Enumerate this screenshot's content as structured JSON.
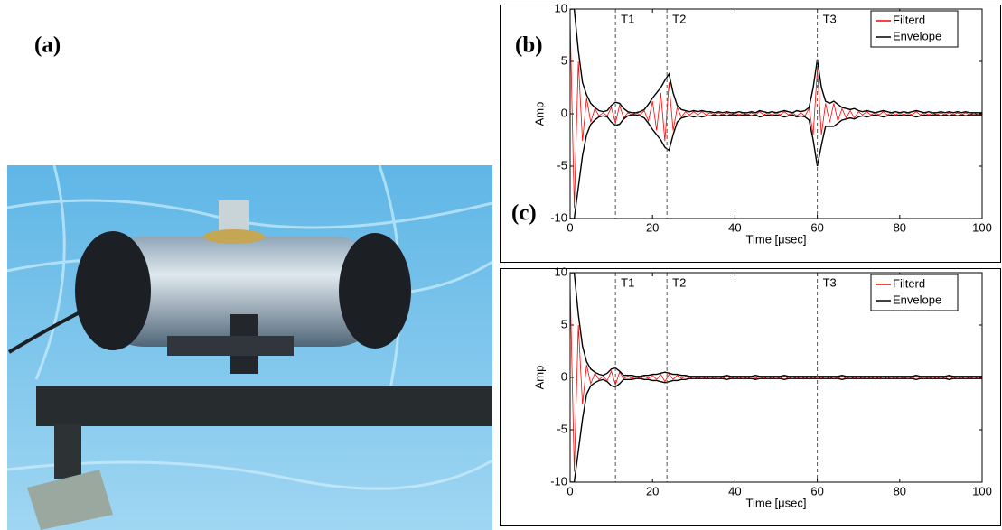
{
  "panel_labels": [
    "(a)",
    "(b)",
    "(c)"
  ],
  "chart_data": [
    {
      "type": "line",
      "xlabel": "Time [μsec]",
      "ylabel": "Amp",
      "xlim": [
        0,
        100
      ],
      "ylim": [
        -10,
        10
      ],
      "xticks": [
        0,
        20,
        40,
        60,
        80,
        100
      ],
      "yticks": [
        -10,
        -5,
        0,
        5,
        10
      ],
      "legend": "top-right",
      "markers": [
        {
          "label": "T1",
          "x": 11
        },
        {
          "label": "T2",
          "x": 23.5
        },
        {
          "label": "T3",
          "x": 60
        }
      ],
      "x": [
        0,
        1,
        2,
        3,
        4,
        5,
        6,
        7,
        8,
        9,
        10,
        11,
        12,
        13,
        14,
        15,
        16,
        17,
        18,
        19,
        20,
        21,
        22,
        23,
        24,
        25,
        26,
        27,
        28,
        29,
        30,
        31,
        32,
        33,
        34,
        35,
        36,
        37,
        38,
        39,
        40,
        41,
        42,
        43,
        44,
        45,
        46,
        47,
        48,
        49,
        50,
        51,
        52,
        53,
        54,
        55,
        56,
        57,
        58,
        59,
        60,
        61,
        62,
        63,
        64,
        65,
        66,
        67,
        68,
        69,
        70,
        71,
        72,
        73,
        74,
        75,
        76,
        77,
        78,
        79,
        80,
        81,
        82,
        83,
        84,
        85,
        86,
        87,
        88,
        89,
        90,
        91,
        92,
        93,
        94,
        95,
        96,
        97,
        98,
        99,
        100
      ],
      "series": [
        {
          "name": "Filterd",
          "color": "#ff0000",
          "values": [
            9,
            -9,
            5,
            -2.6,
            1.5,
            -0.8,
            0.5,
            -0.2,
            0.1,
            -0.2,
            0.6,
            -0.9,
            0.8,
            -0.4,
            0.1,
            -0.1,
            0.1,
            -0.1,
            0.3,
            -0.7,
            1.2,
            -1.6,
            2,
            -2.6,
            3,
            -1.6,
            0.6,
            -0.3,
            0.2,
            -0.1,
            0.2,
            -0.1,
            0.2,
            -0.1,
            0.1,
            -0.1,
            0.1,
            -0.1,
            0.1,
            -0.1,
            0.1,
            -0.1,
            0.1,
            -0.1,
            0.1,
            -0.1,
            0.2,
            -0.1,
            0.1,
            -0.1,
            0.1,
            -0.1,
            0.2,
            -0.1,
            0.1,
            -0.2,
            0.1,
            -0.2,
            0.5,
            -2,
            4.2,
            -2,
            1,
            -0.8,
            1,
            -0.7,
            0.5,
            -0.4,
            0.3,
            -0.4,
            0.2,
            -0.1,
            0.2,
            -0.1,
            0.1,
            -0.1,
            0.2,
            -0.1,
            0.1,
            -0.1,
            0.1,
            -0.1,
            0.1,
            -0.1,
            0.2,
            -0.1,
            0.1,
            -0.1,
            0.1,
            -0.1,
            0.1,
            -0.1,
            0.1,
            -0.1,
            0.1,
            -0.1,
            0.1,
            -0.1,
            0.1,
            -0.1,
            0
          ]
        },
        {
          "name": "Envelope",
          "color": "#000000",
          "values": [
            10,
            10,
            6,
            3,
            1.8,
            1,
            0.6,
            0.3,
            0.2,
            0.3,
            0.8,
            1.1,
            1,
            0.5,
            0.2,
            0.1,
            0.1,
            0.2,
            0.4,
            0.9,
            1.5,
            2,
            2.5,
            3.2,
            3.8,
            2,
            0.8,
            0.4,
            0.3,
            0.2,
            0.3,
            0.2,
            0.3,
            0.2,
            0.2,
            0.1,
            0.2,
            0.1,
            0.2,
            0.1,
            0.1,
            0.2,
            0.1,
            0.1,
            0.2,
            0.1,
            0.3,
            0.2,
            0.1,
            0.2,
            0.1,
            0.2,
            0.3,
            0.2,
            0.1,
            0.3,
            0.2,
            0.3,
            0.6,
            2.5,
            5.2,
            2.5,
            1.2,
            1,
            1.2,
            0.9,
            0.6,
            0.5,
            0.4,
            0.5,
            0.3,
            0.2,
            0.3,
            0.2,
            0.1,
            0.2,
            0.3,
            0.2,
            0.1,
            0.2,
            0.1,
            0.2,
            0.1,
            0.2,
            0.3,
            0.2,
            0.1,
            0.2,
            0.1,
            0.1,
            0.2,
            0.1,
            0.2,
            0.1,
            0.2,
            0.1,
            0.2,
            0.1,
            0.1,
            0.1,
            0.1
          ],
          "lower": [
            -10,
            -10,
            -7,
            -4,
            -2,
            -1,
            -0.6,
            -0.3,
            -0.2,
            -0.3,
            -0.8,
            -1.1,
            -1,
            -0.5,
            -0.2,
            -0.1,
            -0.1,
            -0.2,
            -0.4,
            -0.9,
            -1.5,
            -2,
            -2.5,
            -3.2,
            -3.5,
            -2,
            -0.8,
            -0.4,
            -0.3,
            -0.2,
            -0.3,
            -0.2,
            -0.3,
            -0.2,
            -0.2,
            -0.1,
            -0.2,
            -0.1,
            -0.2,
            -0.1,
            -0.1,
            -0.2,
            -0.1,
            -0.1,
            -0.2,
            -0.1,
            -0.3,
            -0.2,
            -0.1,
            -0.2,
            -0.1,
            -0.2,
            -0.3,
            -0.2,
            -0.1,
            -0.3,
            -0.2,
            -0.3,
            -0.6,
            -2.5,
            -5,
            -3,
            -1.2,
            -1.2,
            -1.2,
            -0.9,
            -0.6,
            -0.5,
            -0.4,
            -0.5,
            -0.3,
            -0.2,
            -0.3,
            -0.2,
            -0.1,
            -0.2,
            -0.3,
            -0.2,
            -0.1,
            -0.2,
            -0.1,
            -0.2,
            -0.1,
            -0.2,
            -0.3,
            -0.2,
            -0.1,
            -0.2,
            -0.1,
            -0.1,
            -0.2,
            -0.1,
            -0.2,
            -0.1,
            -0.2,
            -0.1,
            -0.2,
            -0.1,
            -0.1,
            -0.1,
            -0.1
          ]
        }
      ]
    },
    {
      "type": "line",
      "xlabel": "Time [μsec]",
      "ylabel": "Amp",
      "xlim": [
        0,
        100
      ],
      "ylim": [
        -10,
        10
      ],
      "xticks": [
        0,
        20,
        40,
        60,
        80,
        100
      ],
      "yticks": [
        -10,
        -5,
        0,
        5,
        10
      ],
      "legend": "top-right",
      "markers": [
        {
          "label": "T1",
          "x": 11
        },
        {
          "label": "T2",
          "x": 23.5
        },
        {
          "label": "T3",
          "x": 60
        }
      ],
      "x": [
        0,
        1,
        2,
        3,
        4,
        5,
        6,
        7,
        8,
        9,
        10,
        11,
        12,
        13,
        14,
        15,
        16,
        17,
        18,
        19,
        20,
        21,
        22,
        23,
        24,
        25,
        26,
        27,
        28,
        29,
        30,
        31,
        32,
        33,
        34,
        35,
        36,
        37,
        38,
        39,
        40,
        41,
        42,
        43,
        44,
        45,
        46,
        47,
        48,
        49,
        50,
        51,
        52,
        53,
        54,
        55,
        56,
        57,
        58,
        59,
        60,
        61,
        62,
        63,
        64,
        65,
        66,
        67,
        68,
        69,
        70,
        71,
        72,
        73,
        74,
        75,
        76,
        77,
        78,
        79,
        80,
        81,
        82,
        83,
        84,
        85,
        86,
        87,
        88,
        89,
        90,
        91,
        92,
        93,
        94,
        95,
        96,
        97,
        98,
        99,
        100
      ],
      "series": [
        {
          "name": "Filterd",
          "color": "#ff0000",
          "values": [
            9,
            -9,
            5,
            -2.6,
            1.2,
            -0.6,
            0.4,
            -0.2,
            0.1,
            -0.3,
            0.6,
            -0.7,
            0.5,
            -0.1,
            0.1,
            -0.1,
            0.1,
            -0.1,
            0.1,
            -0.1,
            0.2,
            -0.2,
            0.3,
            -0.4,
            0.3,
            -0.2,
            0.2,
            -0.1,
            0.1,
            -0.1,
            0.1,
            -0.1,
            0.1,
            -0.1,
            0.1,
            -0.1,
            0.1,
            -0.1,
            0.1,
            -0.1,
            0.1,
            -0.1,
            0.1,
            -0.1,
            0.1,
            -0.1,
            0.1,
            -0.1,
            0.1,
            -0.1,
            0.1,
            -0.1,
            0.1,
            -0.1,
            0.1,
            -0.1,
            0.1,
            -0.1,
            0.1,
            -0.1,
            0.1,
            -0.1,
            0.1,
            -0.1,
            0.1,
            -0.1,
            0.1,
            -0.1,
            0.1,
            -0.1,
            0.1,
            -0.1,
            0.1,
            -0.1,
            0.1,
            -0.1,
            0.1,
            -0.1,
            0.1,
            -0.1,
            0.1,
            -0.1,
            0.1,
            -0.1,
            0.1,
            -0.1,
            0.1,
            -0.1,
            0.1,
            -0.1,
            0.1,
            -0.1,
            0.1,
            -0.1,
            0.1,
            -0.1,
            0.1,
            -0.1,
            0.1,
            -0.1,
            0
          ]
        },
        {
          "name": "Envelope",
          "color": "#000000",
          "values": [
            10,
            10,
            6,
            3,
            1.5,
            0.8,
            0.5,
            0.3,
            0.2,
            0.4,
            0.8,
            0.9,
            0.6,
            0.2,
            0.2,
            0.2,
            0.1,
            0.1,
            0.2,
            0.2,
            0.3,
            0.3,
            0.4,
            0.5,
            0.4,
            0.3,
            0.3,
            0.2,
            0.2,
            0.1,
            0.1,
            0.1,
            0.1,
            0.1,
            0.1,
            0.1,
            0.1,
            0.1,
            0.2,
            0.1,
            0.1,
            0.1,
            0.1,
            0.1,
            0.1,
            0.2,
            0.1,
            0.1,
            0.1,
            0.1,
            0.1,
            0.1,
            0.2,
            0.1,
            0.1,
            0.1,
            0.1,
            0.1,
            0.1,
            0.1,
            0.1,
            0.1,
            0.1,
            0.1,
            0.1,
            0.1,
            0.2,
            0.1,
            0.1,
            0.1,
            0.1,
            0.1,
            0.1,
            0.1,
            0.1,
            0.1,
            0.1,
            0.1,
            0.1,
            0.1,
            0.1,
            0.1,
            0.1,
            0.1,
            0.2,
            0.1,
            0.1,
            0.1,
            0.1,
            0.1,
            0.1,
            0.1,
            0.2,
            0.1,
            0.1,
            0.1,
            0.1,
            0.1,
            0.1,
            0.1,
            0.1
          ],
          "lower": [
            -10,
            -10,
            -7,
            -4,
            -1.6,
            -0.8,
            -0.5,
            -0.3,
            -0.2,
            -0.4,
            -0.8,
            -0.9,
            -0.6,
            -0.2,
            -0.2,
            -0.2,
            -0.1,
            -0.1,
            -0.2,
            -0.2,
            -0.3,
            -0.3,
            -0.4,
            -0.5,
            -0.4,
            -0.3,
            -0.3,
            -0.2,
            -0.2,
            -0.1,
            -0.1,
            -0.1,
            -0.1,
            -0.1,
            -0.1,
            -0.1,
            -0.1,
            -0.1,
            -0.2,
            -0.1,
            -0.1,
            -0.1,
            -0.1,
            -0.1,
            -0.1,
            -0.2,
            -0.1,
            -0.1,
            -0.1,
            -0.1,
            -0.1,
            -0.1,
            -0.2,
            -0.1,
            -0.1,
            -0.1,
            -0.1,
            -0.1,
            -0.1,
            -0.1,
            -0.1,
            -0.1,
            -0.1,
            -0.1,
            -0.1,
            -0.1,
            -0.2,
            -0.1,
            -0.1,
            -0.1,
            -0.1,
            -0.1,
            -0.1,
            -0.1,
            -0.1,
            -0.1,
            -0.1,
            -0.1,
            -0.1,
            -0.1,
            -0.1,
            -0.1,
            -0.1,
            -0.1,
            -0.2,
            -0.1,
            -0.1,
            -0.1,
            -0.1,
            -0.1,
            -0.1,
            -0.1,
            -0.2,
            -0.1,
            -0.1,
            -0.1,
            -0.1,
            -0.1,
            -0.1,
            -0.1,
            -0.1
          ]
        }
      ]
    }
  ]
}
